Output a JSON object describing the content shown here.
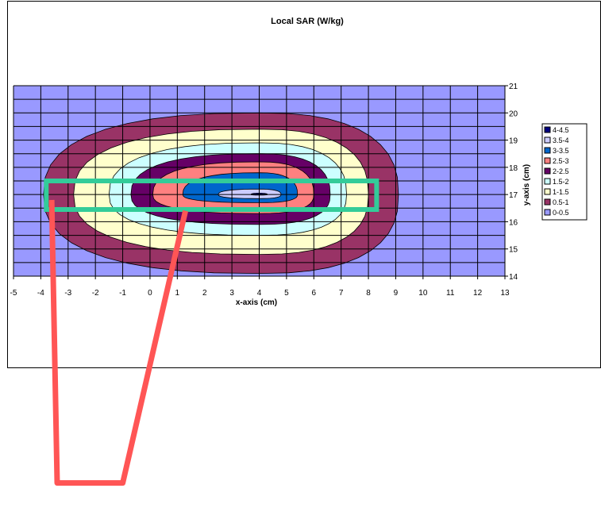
{
  "colors": {
    "background_band": "#9999ff",
    "grid": "#000000",
    "highlight_rect": "#33cc99",
    "sketch_line": "#ff5555"
  },
  "chart_data": {
    "type": "contour",
    "title": "Local SAR (W/kg)",
    "xlabel": "x-axis (cm)",
    "ylabel": "y-axis (cm)",
    "xlim": [
      -5,
      13
    ],
    "ylim": [
      14,
      21
    ],
    "x_ticks": [
      "-5",
      "-4",
      "-3",
      "-2",
      "-1",
      "0",
      "1",
      "2",
      "3",
      "4",
      "5",
      "6",
      "7",
      "8",
      "9",
      "10",
      "11",
      "12",
      "13"
    ],
    "y_ticks": [
      "14",
      "15",
      "16",
      "17",
      "18",
      "19",
      "20",
      "21"
    ],
    "grid": true,
    "legend_position": "right",
    "peak_center": [
      4,
      17
    ],
    "levels": [
      {
        "label": "0-0.5",
        "color": "#9999ff",
        "x_extent": [
          -5,
          13
        ],
        "y_extent": [
          14,
          21
        ]
      },
      {
        "label": "0.5-1",
        "color": "#993366",
        "x_extent": [
          -3.9,
          9.1
        ],
        "y_extent": [
          14.1,
          20.0
        ]
      },
      {
        "label": "1-1.5",
        "color": "#ffffcc",
        "x_extent": [
          -2.8,
          8.0
        ],
        "y_extent": [
          14.8,
          19.4
        ]
      },
      {
        "label": "1.5-2",
        "color": "#ccffff",
        "x_extent": [
          -1.5,
          7.2
        ],
        "y_extent": [
          15.5,
          18.9
        ]
      },
      {
        "label": "2-2.5",
        "color": "#660066",
        "x_extent": [
          -0.7,
          6.6
        ],
        "y_extent": [
          15.9,
          18.5
        ]
      },
      {
        "label": "2.5-3",
        "color": "#ff8080",
        "x_extent": [
          0.1,
          6.0
        ],
        "y_extent": [
          16.3,
          18.2
        ]
      },
      {
        "label": "3-3.5",
        "color": "#0066cc",
        "x_extent": [
          1.2,
          5.4
        ],
        "y_extent": [
          16.7,
          17.8
        ]
      },
      {
        "label": "3.5-4",
        "color": "#ccccff",
        "x_extent": [
          2.5,
          4.8
        ],
        "y_extent": [
          16.85,
          17.2
        ]
      },
      {
        "label": "4-4.5",
        "color": "#000080",
        "x_extent": [
          3.7,
          4.3
        ],
        "y_extent": [
          16.98,
          17.05
        ]
      }
    ],
    "legend": [
      "4-4.5",
      "3.5-4",
      "3-3.5",
      "2.5-3",
      "2-2.5",
      "1.5-2",
      "1-1.5",
      "0.5-1",
      "0-0.5"
    ],
    "overlay_highlight": {
      "x_range": [
        -3.8,
        8.3
      ],
      "y_range": [
        16.45,
        17.5
      ]
    },
    "overlay_sketch": {
      "points": [
        [
          -3.6,
          16.8
        ],
        [
          -3.4,
          6.4
        ],
        [
          -1.0,
          6.4
        ],
        [
          1.3,
          16.4
        ]
      ]
    }
  }
}
